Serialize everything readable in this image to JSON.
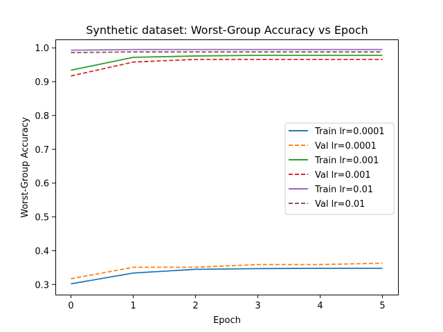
{
  "chart_data": {
    "type": "line",
    "title": "Synthetic dataset: Worst-Group Accuracy vs Epoch",
    "xlabel": "Epoch",
    "ylabel": "Worst-Group Accuracy",
    "x": [
      0,
      1,
      2,
      3,
      4,
      5
    ],
    "xlim": [
      -0.25,
      5.25
    ],
    "ylim": [
      0.27,
      1.025
    ],
    "xticks": [
      "0",
      "1",
      "2",
      "3",
      "4",
      "5"
    ],
    "yticks": [
      "0.3",
      "0.4",
      "0.5",
      "0.6",
      "0.7",
      "0.8",
      "0.9",
      "1.0"
    ],
    "grid": false,
    "legend_position": "center-right",
    "series": [
      {
        "name": "Train lr=0.0001",
        "color": "#1f77b4",
        "dashed": false,
        "values": [
          0.302,
          0.334,
          0.345,
          0.347,
          0.348,
          0.348
        ]
      },
      {
        "name": "Val lr=0.0001",
        "color": "#ff7f0e",
        "dashed": true,
        "values": [
          0.317,
          0.351,
          0.351,
          0.359,
          0.359,
          0.363
        ]
      },
      {
        "name": "Train lr=0.001",
        "color": "#2ca02c",
        "dashed": false,
        "values": [
          0.934,
          0.972,
          0.976,
          0.978,
          0.978,
          0.978
        ]
      },
      {
        "name": "Val lr=0.001",
        "color": "#d62728",
        "dashed": true,
        "values": [
          0.917,
          0.958,
          0.966,
          0.966,
          0.966,
          0.966
        ]
      },
      {
        "name": "Train lr=0.01",
        "color": "#9467bd",
        "dashed": false,
        "values": [
          0.993,
          0.995,
          0.995,
          0.995,
          0.995,
          0.995
        ]
      },
      {
        "name": "Val lr=0.01",
        "color": "#8c564b",
        "dashed": true,
        "values": [
          0.986,
          0.988,
          0.988,
          0.988,
          0.988,
          0.988
        ]
      }
    ]
  }
}
